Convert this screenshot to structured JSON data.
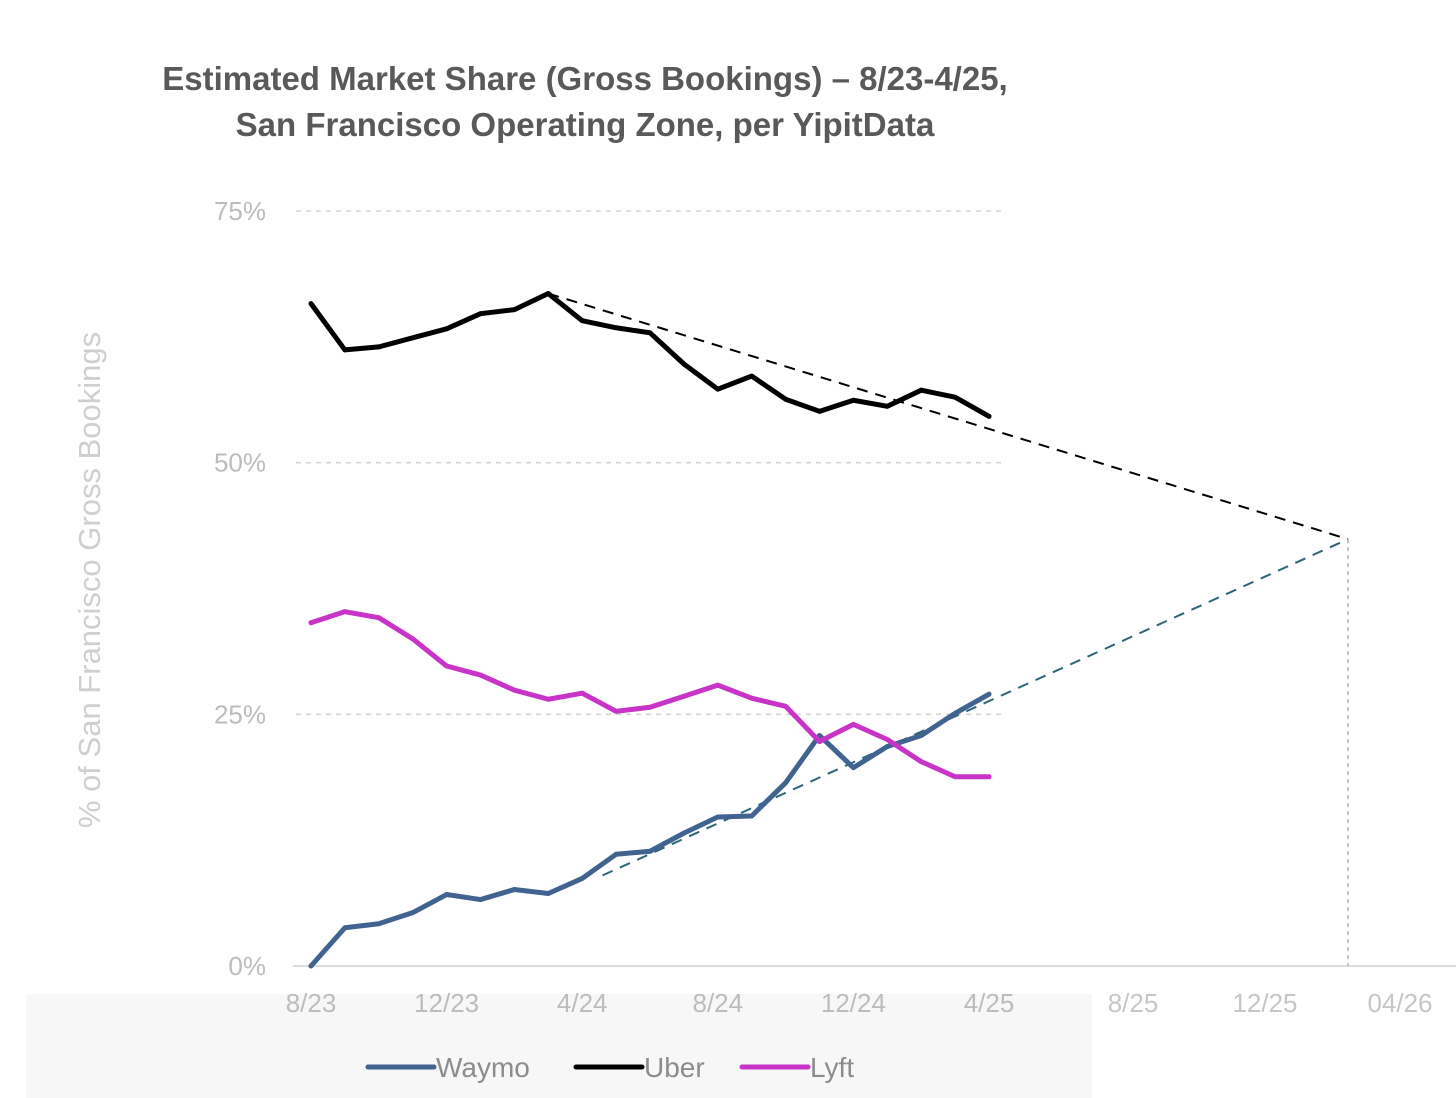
{
  "chart_data": {
    "type": "line",
    "title_line1": "Estimated Market Share (Gross Bookings) – 8/23-4/25,",
    "title_line2": "San Francisco Operating Zone, per YipitData",
    "ylabel": "% of San Francisco Gross Bookings",
    "xlabel": "",
    "ylim": [
      0,
      75
    ],
    "y_ticks": [
      "0%",
      "25%",
      "50%",
      "75%"
    ],
    "x_ticks": [
      "8/23",
      "12/23",
      "4/24",
      "8/24",
      "12/24",
      "4/25"
    ],
    "x_ticks_extended": [
      "8/25",
      "12/25",
      "04/26"
    ],
    "x": [
      0,
      1,
      2,
      3,
      4,
      5,
      6,
      7,
      8,
      9,
      10,
      11,
      12,
      13,
      14,
      15,
      16,
      17,
      18,
      19,
      20
    ],
    "series": [
      {
        "name": "Waymo",
        "color": "#41638f",
        "values": [
          0,
          3.8,
          4.2,
          5.3,
          7.1,
          6.6,
          7.6,
          7.2,
          8.7,
          11.1,
          11.4,
          13.2,
          14.8,
          14.9,
          18.2,
          22.9,
          19.7,
          21.8,
          22.9,
          25.1,
          27.0
        ]
      },
      {
        "name": "Uber",
        "color": "#000000",
        "values": [
          65.8,
          61.2,
          61.5,
          62.4,
          63.3,
          64.8,
          65.2,
          66.8,
          64.1,
          63.4,
          62.9,
          59.8,
          57.3,
          58.6,
          56.3,
          55.1,
          56.2,
          55.6,
          57.2,
          56.5,
          54.6
        ]
      },
      {
        "name": "Lyft",
        "color": "#c833c8",
        "values": [
          34.1,
          35.2,
          34.6,
          32.5,
          29.8,
          28.9,
          27.4,
          26.5,
          27.1,
          25.3,
          25.7,
          26.8,
          27.9,
          26.6,
          25.8,
          22.3,
          24.0,
          22.5,
          20.3,
          18.8,
          18.8
        ]
      }
    ],
    "projections": [
      {
        "from_series": "Uber",
        "from_x": 7,
        "from_y": 66.8,
        "to_x": 30.7,
        "to_y": 42.4,
        "color": "#000000"
      },
      {
        "from_series": "Waymo",
        "from_x": 8.6,
        "from_y": 9.0,
        "to_x": 30.7,
        "to_y": 42.4,
        "color": "#2e6478"
      }
    ],
    "grid": true,
    "legend_position": "bottom"
  }
}
